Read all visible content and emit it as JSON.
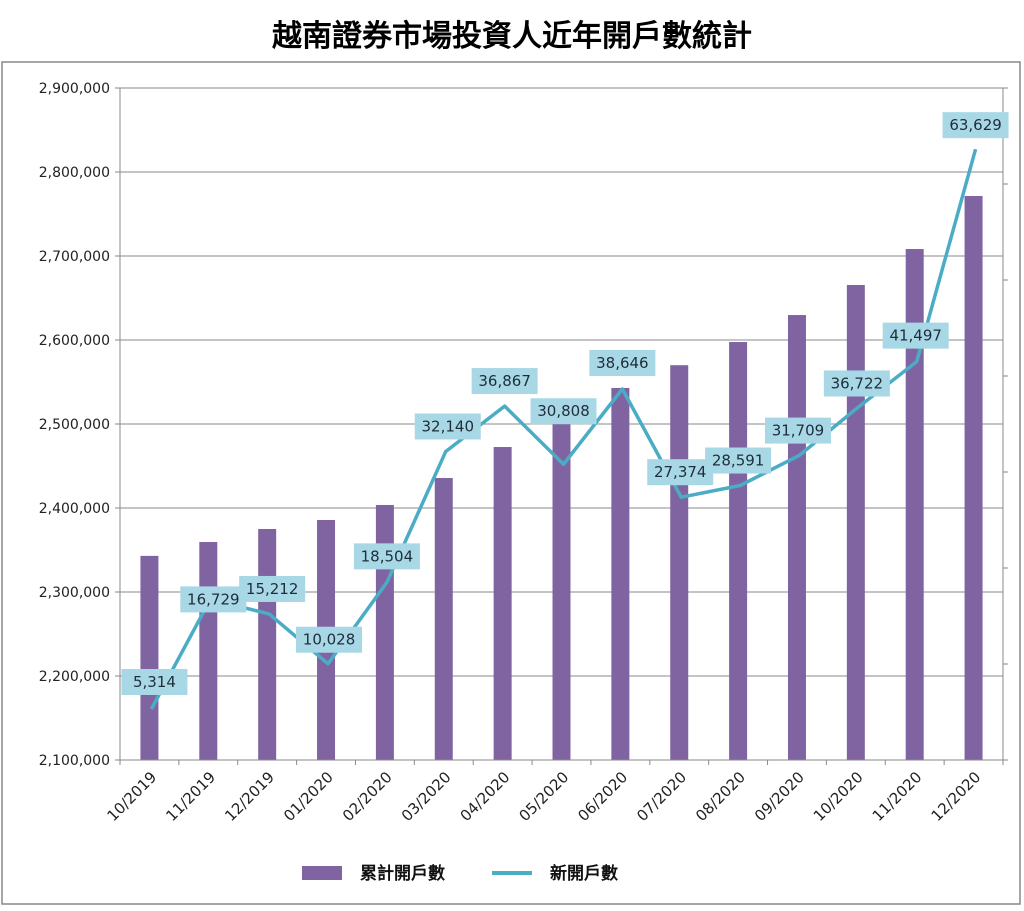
{
  "chart_data": {
    "type": "bar+line",
    "title": "越南證券市場投資人近年開戶數統計",
    "categories": [
      "10/2019",
      "11/2019",
      "12/2019",
      "01/2020",
      "02/2020",
      "03/2020",
      "04/2020",
      "05/2020",
      "06/2020",
      "07/2020",
      "08/2020",
      "09/2020",
      "10/2020",
      "11/2020",
      "12/2020"
    ],
    "series": [
      {
        "name": "累計開戶數",
        "type": "bar",
        "axis": "primary",
        "color": "#8064a2",
        "values": [
          2343000,
          2359500,
          2375000,
          2385700,
          2403600,
          2435700,
          2472600,
          2503400,
          2542900,
          2570000,
          2597600,
          2629700,
          2665500,
          2708300,
          2771400
        ]
      },
      {
        "name": "新開戶數",
        "type": "line",
        "axis": "secondary",
        "color": "#4bacc6",
        "values": [
          5314,
          16729,
          15212,
          10028,
          18504,
          32140,
          36867,
          30808,
          38646,
          27374,
          28591,
          31709,
          36722,
          41497,
          63629
        ],
        "data_labels": [
          "5,314",
          "16,729",
          "15,212",
          "10,028",
          "18,504",
          "32,140",
          "36,867",
          "30,808",
          "38,646",
          "27,374",
          "28,591",
          "31,709",
          "36,722",
          "41,497",
          "63,629"
        ]
      }
    ],
    "ylim": [
      2100000,
      2900000
    ],
    "y_ticks": [
      "2,100,000",
      "2,200,000",
      "2,300,000",
      "2,400,000",
      "2,500,000",
      "2,600,000",
      "2,700,000",
      "2,800,000",
      "2,900,000"
    ],
    "y2lim": [
      0,
      70000
    ],
    "y2_tick_labels_shown": false,
    "grid": true,
    "legend": "bottom",
    "label_bg_color": "#a8d8e5"
  }
}
